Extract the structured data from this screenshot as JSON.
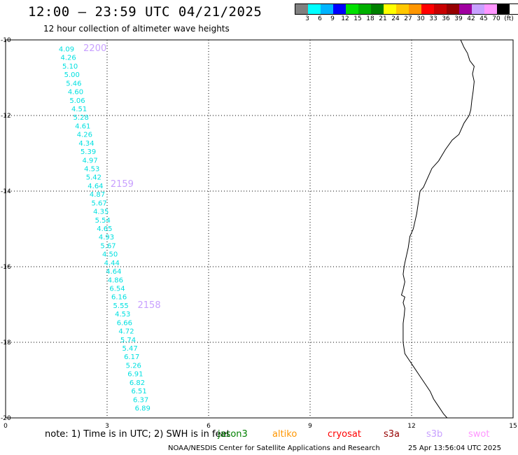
{
  "header": {
    "title": "12:00 – 23:59 UTC 04/21/2025",
    "subtitle": "12 hour collection of altimeter wave heights"
  },
  "legend": {
    "colors": [
      "#808080",
      "#00ffff",
      "#00b4ff",
      "#0000ff",
      "#00e000",
      "#00b000",
      "#008000",
      "#ffff00",
      "#ffc800",
      "#ff9600",
      "#ff0000",
      "#c80000",
      "#960000",
      "#a000a0",
      "#c8a0ff",
      "#ff96ff",
      "#000000"
    ],
    "labels": [
      "3",
      "6",
      "9",
      "12",
      "15",
      "18",
      "21",
      "24",
      "27",
      "30",
      "33",
      "36",
      "39",
      "42",
      "45",
      "70",
      "(ft)"
    ]
  },
  "axes": {
    "x_ticks": [
      "0",
      "3",
      "6",
      "9",
      "12",
      "15"
    ],
    "y_ticks": [
      "-10",
      "-12",
      "-14",
      "-16",
      "-18",
      "-20"
    ]
  },
  "track_times": [
    "2200",
    "2159",
    "2158"
  ],
  "wave_heights": [
    "4.09",
    "4.26",
    "5.10",
    "5.00",
    "5.46",
    "4.60",
    "5.06",
    "4.51",
    "5.28",
    "4.61",
    "4.26",
    "4.34",
    "5.39",
    "4.97",
    "4.53",
    "5.42",
    "4.64",
    "4.87",
    "5.67",
    "4.35",
    "5.54",
    "4.65",
    "4.93",
    "5.67",
    "4.50",
    "4.44",
    "4.64",
    "4.86",
    "6.54",
    "6.16",
    "5.55",
    "4.53",
    "6.66",
    "4.72",
    "5.74",
    "5.47",
    "6.17",
    "5.26",
    "6.91",
    "6.82",
    "6.51",
    "6.37",
    "6.89"
  ],
  "notes": {
    "note_text": "note: 1) Time is in UTC; 2) SWH is in feet",
    "satellites": [
      {
        "name": "jason3",
        "color": "#008000"
      },
      {
        "name": "altiko",
        "color": "#ff9600"
      },
      {
        "name": "cryosat",
        "color": "#ff0000"
      },
      {
        "name": "s3a",
        "color": "#960000"
      },
      {
        "name": "s3b",
        "color": "#c8a0ff"
      },
      {
        "name": "swot",
        "color": "#ff96ff"
      }
    ]
  },
  "footer": {
    "credit": "NOAA/NESDIS Center for Satellite Applications and Research",
    "timestamp": "25 Apr 13:56:04 UTC 2025"
  },
  "colors": {
    "wave_text": "#00e0e0",
    "time_label": "#c8a0ff",
    "grid": "#000000",
    "coastline": "#000000"
  }
}
